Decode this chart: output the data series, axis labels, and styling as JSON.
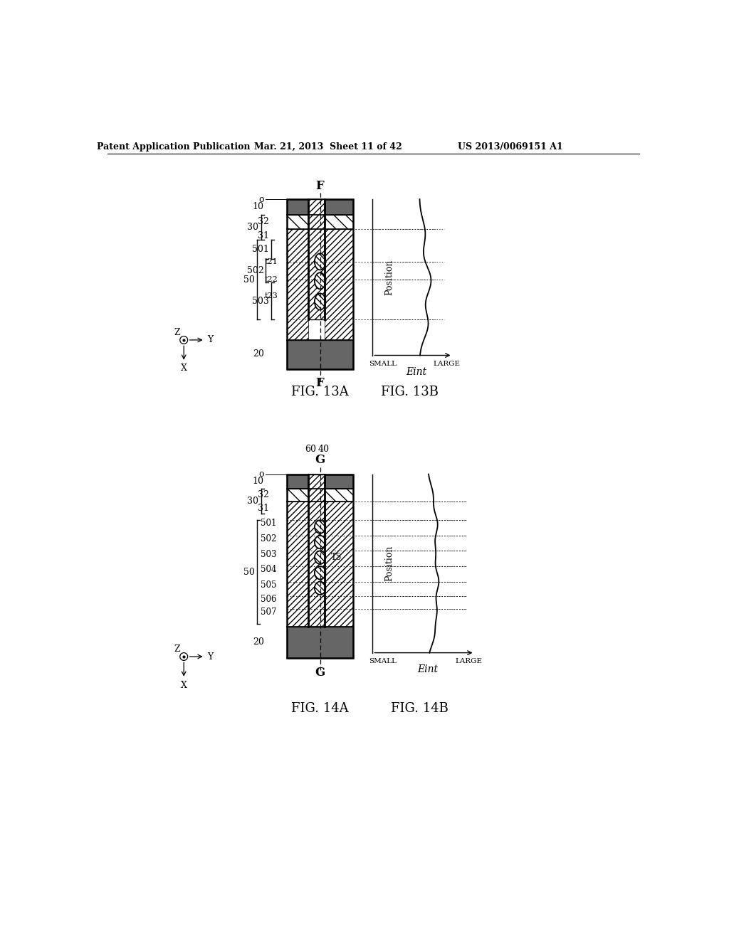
{
  "bg_color": "#ffffff",
  "header_text": "Patent Application Publication",
  "header_date": "Mar. 21, 2013  Sheet 11 of 42",
  "header_patent": "US 2013/0069151 A1",
  "fig13a_title": "FIG. 13A",
  "fig13b_title": "FIG. 13B",
  "fig14a_title": "FIG. 14A",
  "fig14b_title": "FIG. 14B",
  "text_color": "#000000",
  "line_color": "#000000"
}
